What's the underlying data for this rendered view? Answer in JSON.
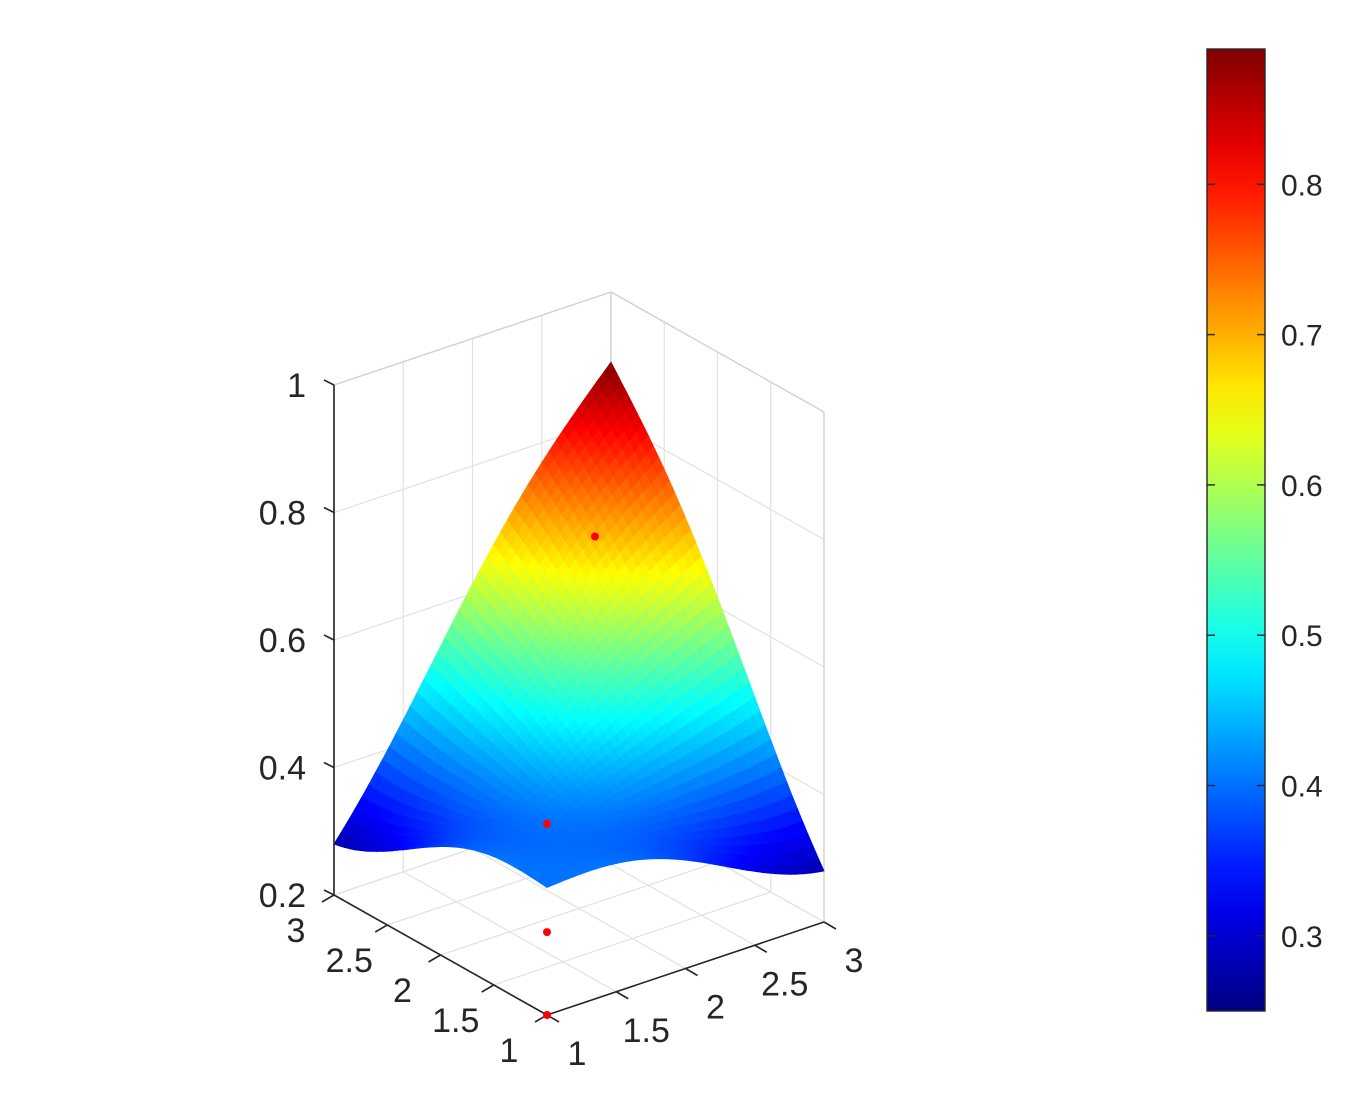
{
  "chart_data": {
    "type": "surface",
    "title": "",
    "xlabel": "",
    "ylabel": "",
    "zlabel": "",
    "x_range": [
      1,
      3
    ],
    "y_range": [
      1,
      3
    ],
    "z_range": [
      0.2,
      1
    ],
    "x_ticks": [
      {
        "value": 1,
        "label": "1"
      },
      {
        "value": 1.5,
        "label": "1.5"
      },
      {
        "value": 2,
        "label": "2"
      },
      {
        "value": 2.5,
        "label": "2.5"
      },
      {
        "value": 3,
        "label": "3"
      }
    ],
    "y_ticks": [
      {
        "value": 1,
        "label": "1"
      },
      {
        "value": 1.5,
        "label": "1.5"
      },
      {
        "value": 2,
        "label": "2"
      },
      {
        "value": 2.5,
        "label": "2.5"
      },
      {
        "value": 3,
        "label": "3"
      }
    ],
    "z_ticks": [
      {
        "value": 0.2,
        "label": "0.2"
      },
      {
        "value": 0.4,
        "label": "0.4"
      },
      {
        "value": 0.6,
        "label": "0.6"
      },
      {
        "value": 0.8,
        "label": "0.8"
      },
      {
        "value": 1,
        "label": "1"
      }
    ],
    "grid": true,
    "colormap": "jet",
    "colorbar": {
      "location": "right",
      "range": [
        0.25,
        0.89
      ],
      "ticks": [
        {
          "value": 0.3,
          "label": "0.3"
        },
        {
          "value": 0.4,
          "label": "0.4"
        },
        {
          "value": 0.5,
          "label": "0.5"
        },
        {
          "value": 0.6,
          "label": "0.6"
        },
        {
          "value": 0.7,
          "label": "0.7"
        },
        {
          "value": 0.8,
          "label": "0.8"
        }
      ]
    },
    "surface": {
      "peak": {
        "x": 3,
        "y": 3,
        "z": 0.89
      },
      "corner_low": {
        "x": 1,
        "y": 1,
        "z": 0.4
      },
      "corner_xy": {
        "x": 1,
        "y": 3,
        "z": 0.34
      },
      "corner_yx": {
        "x": 3,
        "y": 1,
        "z": 0.34
      },
      "min_value": 0.25
    },
    "points": [
      {
        "x": 1,
        "y": 1,
        "z": 0.5
      },
      {
        "x": 1,
        "y": 1,
        "z": 0.33
      },
      {
        "x": 1,
        "y": 1,
        "z": 0.2
      },
      {
        "x": 2.5,
        "y": 2.5,
        "z": 0.7
      }
    ],
    "point_color": "#ff0000"
  }
}
